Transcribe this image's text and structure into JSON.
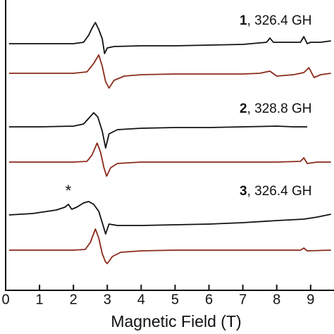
{
  "chart_data": {
    "type": "line",
    "x_label": "Magnetic Field (T)",
    "xlim": [
      0,
      9.69
    ],
    "xticks": [
      0,
      1,
      2,
      3,
      4,
      5,
      6,
      7,
      8,
      9
    ],
    "ylim": [
      0,
      412
    ],
    "annotations": [
      {
        "number": "1",
        "text": ", 326.4 GH"
      },
      {
        "number": "2",
        "text": ", 328.8 GH"
      },
      {
        "number": "3",
        "text": ", 326.4 GH"
      }
    ],
    "marker": {
      "text": "*",
      "x": 1.85,
      "y": 140,
      "color": "#4b4b9c"
    },
    "series": [
      {
        "color": "#111111",
        "x": [
          0.1,
          1.0,
          2.0,
          2.3,
          2.45,
          2.55,
          2.65,
          2.75,
          2.85,
          2.92,
          3.0,
          3.2,
          4.0,
          5.0,
          6.0,
          7.0,
          7.7,
          7.8,
          7.9,
          8.7,
          8.8,
          8.9,
          9.0,
          9.3,
          9.6
        ],
        "values": [
          350,
          350,
          350,
          352,
          362,
          372,
          380,
          370,
          357,
          336,
          344,
          346,
          347,
          347,
          348,
          349,
          352,
          358,
          352,
          352,
          360,
          350,
          352,
          352,
          354
        ]
      },
      {
        "color": "#8b2a1a",
        "x": [
          0.1,
          1.0,
          2.0,
          2.4,
          2.6,
          2.75,
          2.85,
          2.95,
          3.05,
          3.2,
          3.5,
          4.0,
          5.0,
          6.0,
          7.0,
          7.5,
          7.8,
          8.0,
          8.5,
          8.8,
          8.95,
          9.1,
          9.3,
          9.6
        ],
        "values": [
          308,
          308,
          308,
          310,
          322,
          334,
          318,
          296,
          287,
          298,
          304,
          306,
          307,
          307,
          307,
          308,
          311,
          304,
          306,
          309,
          316,
          302,
          306,
          308
        ]
      },
      {
        "color": "#111111",
        "x": [
          0.1,
          1.0,
          2.0,
          2.3,
          2.45,
          2.6,
          2.72,
          2.85,
          2.95,
          3.05,
          3.3,
          4.0,
          5.0,
          6.0,
          7.0,
          8.0,
          8.5,
          8.9
        ],
        "values": [
          232,
          232,
          233,
          236,
          244,
          252,
          246,
          226,
          202,
          222,
          228,
          230,
          231,
          231,
          232,
          233,
          232,
          232
        ]
      },
      {
        "color": "#8b2a1a",
        "x": [
          0.1,
          1.0,
          2.0,
          2.4,
          2.55,
          2.7,
          2.8,
          2.9,
          2.98,
          3.1,
          3.3,
          4.0,
          5.0,
          6.0,
          7.0,
          8.0,
          8.7,
          8.8,
          8.9,
          9.2,
          9.6
        ],
        "values": [
          182,
          182,
          182,
          183,
          192,
          209,
          196,
          174,
          162,
          174,
          180,
          182,
          182,
          182,
          182,
          182,
          183,
          188,
          180,
          182,
          182
        ]
      },
      {
        "color": "#111111",
        "x": [
          0.1,
          0.8,
          1.5,
          1.75,
          1.85,
          1.95,
          2.1,
          2.3,
          2.45,
          2.6,
          2.75,
          2.85,
          2.95,
          3.05,
          3.3,
          4.0,
          5.0,
          6.0,
          7.0,
          8.0,
          8.8,
          9.2,
          9.6
        ],
        "values": [
          107,
          109,
          114,
          118,
          122,
          115,
          118,
          124,
          126,
          122,
          112,
          96,
          80,
          94,
          92,
          92,
          93,
          94,
          96,
          99,
          101,
          104,
          108
        ]
      },
      {
        "color": "#8b2a1a",
        "x": [
          0.1,
          1.0,
          2.0,
          2.35,
          2.5,
          2.65,
          2.75,
          2.85,
          2.95,
          3.0,
          3.15,
          3.4,
          4.0,
          5.0,
          6.0,
          7.0,
          8.0,
          8.7,
          8.8,
          8.9,
          9.6
        ],
        "values": [
          57,
          57,
          57,
          58,
          68,
          87,
          74,
          52,
          40,
          38,
          48,
          54,
          56,
          57,
          57,
          57,
          57,
          57,
          60,
          56,
          57
        ]
      }
    ]
  }
}
